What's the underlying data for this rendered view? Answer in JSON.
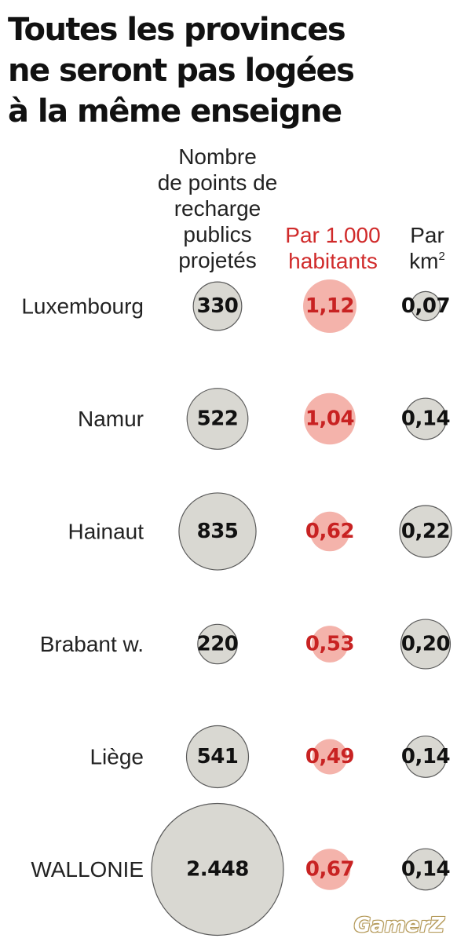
{
  "title_lines": [
    "Toutes les provinces",
    "ne seront pas logées",
    "à la même enseigne"
  ],
  "colors": {
    "count_bubble": "#d9d8d2",
    "bubble_stroke": "#5a5a5a",
    "per1000_bubble": "#f4b3ab",
    "per1000_text": "#c82222",
    "value_text": "#111111"
  },
  "chart_data": {
    "type": "bubble-table",
    "columns": [
      {
        "key": "count",
        "header_lines": [
          "Nombre",
          "de points de",
          "recharge",
          "publics",
          "projetés"
        ]
      },
      {
        "key": "per1000",
        "header_lines": [
          "Par 1.000",
          "habitants"
        ]
      },
      {
        "key": "perkm2",
        "header_lines": [
          "Par",
          "km"
        ],
        "header_superscript": "2"
      }
    ],
    "rows": [
      {
        "label": "Luxembourg",
        "count": 330,
        "count_text": "330",
        "per1000": 1.12,
        "per1000_text": "1,12",
        "perkm2": 0.07,
        "perkm2_text": "0,07"
      },
      {
        "label": "Namur",
        "count": 522,
        "count_text": "522",
        "per1000": 1.04,
        "per1000_text": "1,04",
        "perkm2": 0.14,
        "perkm2_text": "0,14"
      },
      {
        "label": "Hainaut",
        "count": 835,
        "count_text": "835",
        "per1000": 0.62,
        "per1000_text": "0,62",
        "perkm2": 0.22,
        "perkm2_text": "0,22"
      },
      {
        "label": "Brabant w.",
        "count": 220,
        "count_text": "220",
        "per1000": 0.53,
        "per1000_text": "0,53",
        "perkm2": 0.2,
        "perkm2_text": "0,20"
      },
      {
        "label": "Liège",
        "count": 541,
        "count_text": "541",
        "per1000": 0.49,
        "per1000_text": "0,49",
        "perkm2": 0.14,
        "perkm2_text": "0,14"
      },
      {
        "label": "WALLONIE",
        "count": 2448,
        "count_text": "2.448",
        "per1000": 0.67,
        "per1000_text": "0,67",
        "perkm2": 0.14,
        "perkm2_text": "0,14"
      }
    ]
  },
  "watermark": "GamerZ"
}
